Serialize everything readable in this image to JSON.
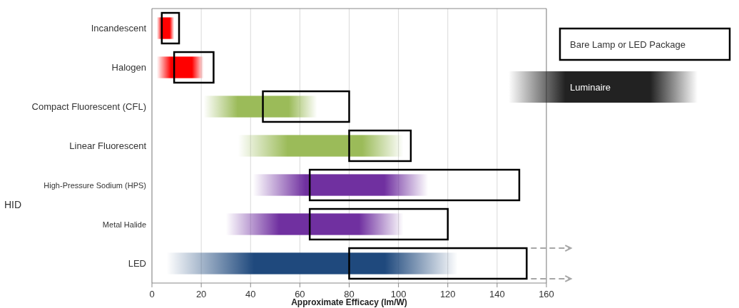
{
  "chart_data": {
    "type": "bar",
    "orientation": "horizontal",
    "xlabel": "Approximate Efficacy (lm/W)",
    "categories": [
      "Incandescent",
      "Halogen",
      "Compact Fluorescent (CFL)",
      "Linear Fluorescent",
      "High-Pressure Sodium (HPS)",
      "Metal Halide",
      "LED"
    ],
    "series": [
      {
        "name": "Luminaire",
        "color": "#222222",
        "colors": [
          "#ff0000",
          "#ff0000",
          "#9bbb59",
          "#9bbb59",
          "#7030a0",
          "#7030a0",
          "#1f497d"
        ],
        "base": [
          2,
          2,
          21,
          35,
          41,
          30,
          6
        ],
        "values": [
          7,
          19,
          46,
          67,
          71,
          72,
          118
        ]
      },
      {
        "name": "Bare Lamp or LED Package",
        "color": "#000000",
        "base": [
          4,
          9,
          45,
          80,
          64,
          64,
          80
        ],
        "values": [
          7,
          16,
          35,
          25,
          85,
          56,
          72
        ]
      }
    ],
    "annotations": [
      "HID"
    ],
    "xlim": [
      0,
      160
    ],
    "xticks": [
      0,
      20,
      40,
      60,
      80,
      100,
      120,
      140,
      160
    ],
    "grid": "x",
    "legend": "top right"
  }
}
